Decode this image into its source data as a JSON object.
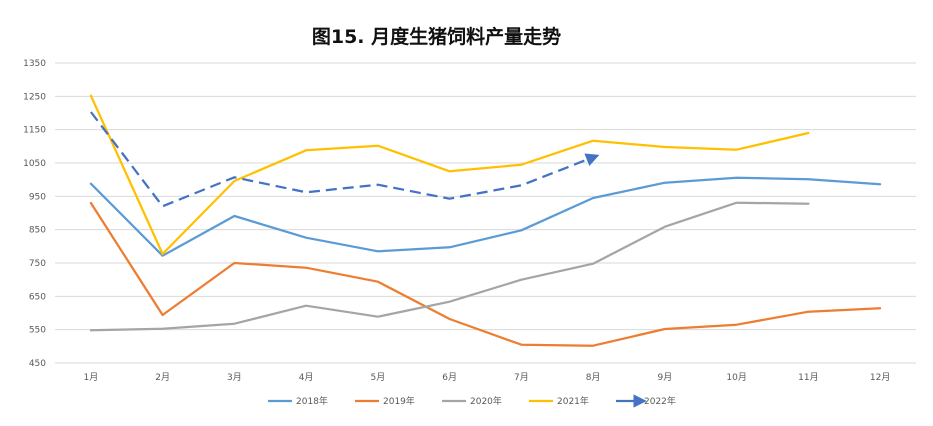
{
  "chart_data": {
    "type": "line",
    "title": "图15. 月度生猪饲料产量走势",
    "xlabel": "",
    "ylabel": "",
    "categories": [
      "1月",
      "2月",
      "3月",
      "4月",
      "5月",
      "6月",
      "7月",
      "8月",
      "9月",
      "10月",
      "11月",
      "12月"
    ],
    "yticks": [
      "1350",
      "1250",
      "1150",
      "1050",
      "950",
      "850",
      "750",
      "650",
      "550",
      "450"
    ],
    "ylim": [
      450,
      1350
    ],
    "grid": true,
    "legend_position": "bottom",
    "series": [
      {
        "name": "2018年",
        "color": "#5B9BD5",
        "dashed": false,
        "values": [
          988,
          772,
          891,
          826,
          785,
          797,
          848,
          945,
          991,
          1006,
          1001,
          986
        ]
      },
      {
        "name": "2019年",
        "color": "#ED7D31",
        "dashed": false,
        "values": [
          930,
          594,
          750,
          736,
          694,
          582,
          505,
          502,
          552,
          565,
          604,
          614
        ]
      },
      {
        "name": "2020年",
        "color": "#A5A5A5",
        "dashed": false,
        "values": [
          548,
          553,
          568,
          622,
          589,
          634,
          700,
          748,
          859,
          931,
          928,
          null
        ]
      },
      {
        "name": "2021年",
        "color": "#FFC000",
        "dashed": false,
        "values": [
          1252,
          777,
          996,
          1088,
          1102,
          1025,
          1045,
          1117,
          1098,
          1090,
          1140,
          null
        ]
      },
      {
        "name": "2022年",
        "color": "#4472C4",
        "dashed": true,
        "values": [
          1203,
          920,
          1007,
          962,
          985,
          943,
          983,
          1067,
          null,
          null,
          null,
          null
        ]
      }
    ]
  }
}
